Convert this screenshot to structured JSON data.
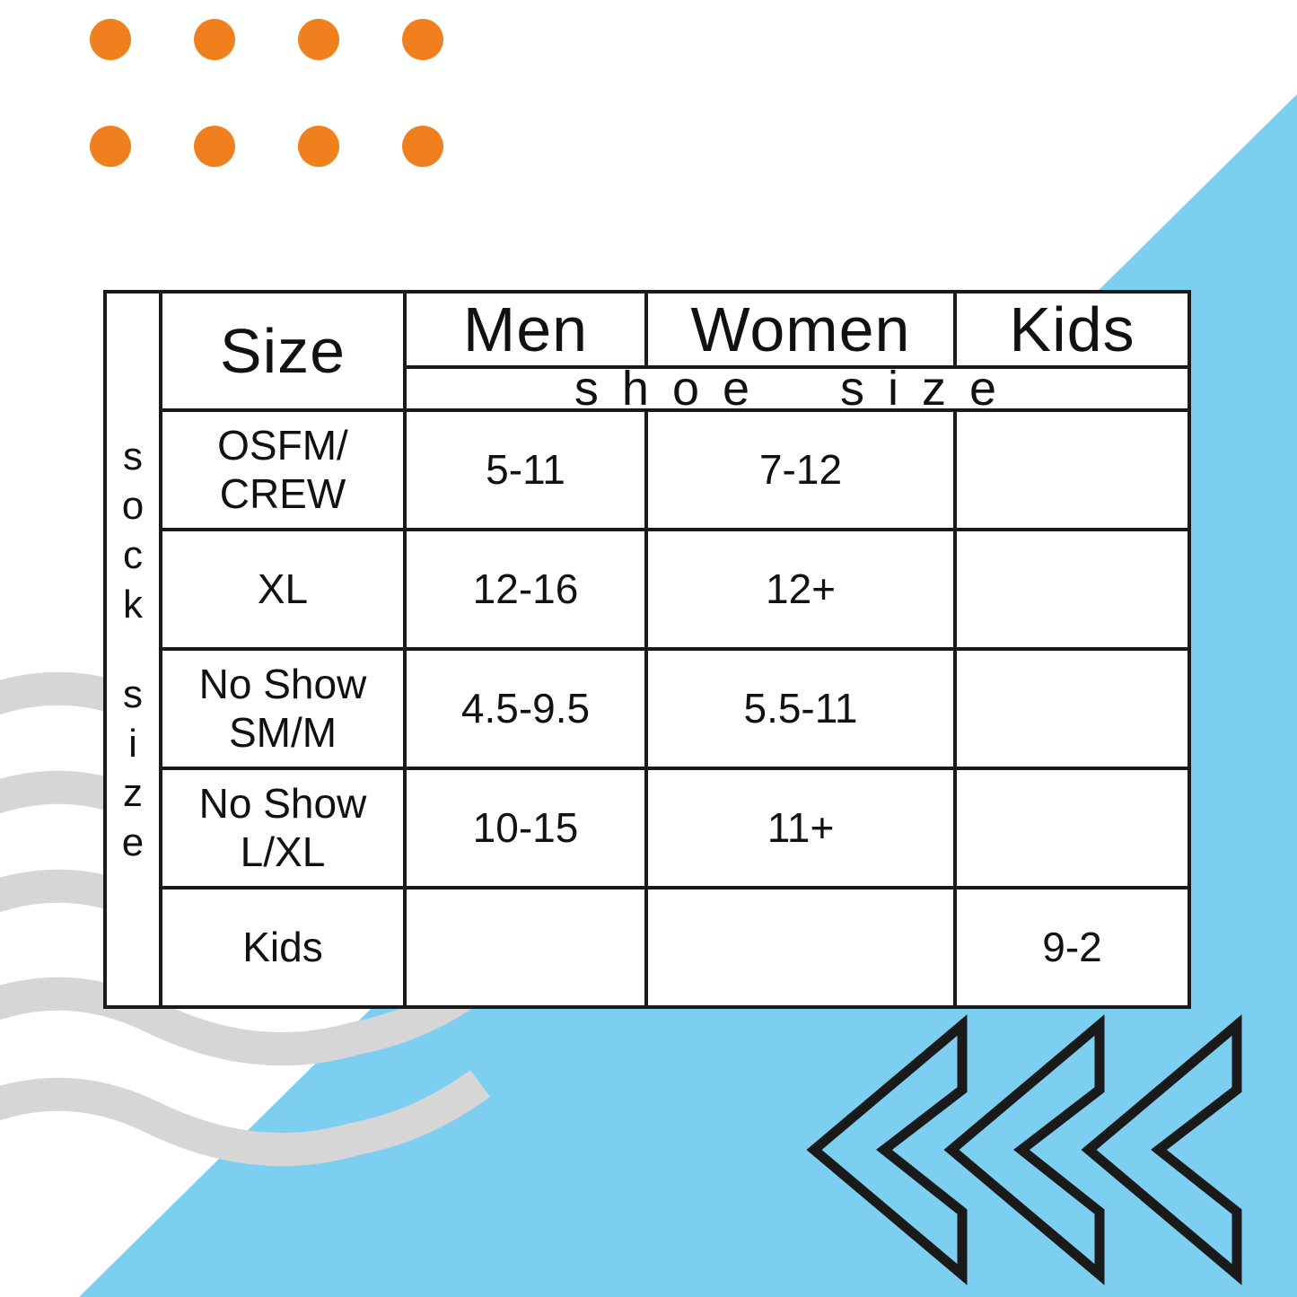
{
  "colors": {
    "background": "#FFFFFF",
    "accent_orange": "#F0801E",
    "accent_blue": "#7DCFF1",
    "wave_gray": "#D6D6D6",
    "line_black": "#1A1A1A",
    "text_black": "#111111"
  },
  "chart_data": {
    "type": "table",
    "row_group_label": "sock size",
    "col_group_label": "shoe size",
    "columns": [
      "Size",
      "Men",
      "Women",
      "Kids"
    ],
    "rows": [
      {
        "size": "OSFM/\nCREW",
        "men": "5-11",
        "women": "7-12",
        "kids": ""
      },
      {
        "size": "XL",
        "men": "12-16",
        "women": "12+",
        "kids": ""
      },
      {
        "size": "No Show\nSM/M",
        "men": "4.5-9.5",
        "women": "5.5-11",
        "kids": ""
      },
      {
        "size": "No Show\nL/XL",
        "men": "10-15",
        "women": "11+",
        "kids": ""
      },
      {
        "size": "Kids",
        "men": "",
        "women": "",
        "kids": "9-2"
      }
    ]
  },
  "decorations": {
    "dot_grid": {
      "rows": 2,
      "cols": 4,
      "color": "#F0801E"
    },
    "waves": {
      "count": 5,
      "color": "#D6D6D6"
    },
    "chevrons": {
      "count": 3,
      "direction": "left",
      "color": "#1A1A1A"
    },
    "corner_triangle_color": "#7DCFF1"
  }
}
